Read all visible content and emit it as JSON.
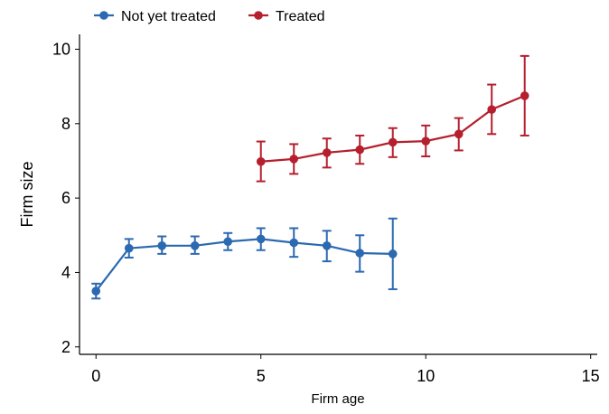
{
  "chart_data": {
    "type": "line",
    "title": "",
    "xlabel": "Firm age",
    "ylabel": "Firm size",
    "xlim": [
      -0.5,
      15.2
    ],
    "ylim": [
      1.8,
      10.4
    ],
    "xticks": [
      0,
      5,
      10,
      15
    ],
    "yticks": [
      2,
      4,
      6,
      8,
      10
    ],
    "grid": false,
    "legend_position": "top-left",
    "error_bars": true,
    "series": [
      {
        "name": "Not yet treated",
        "color": "#2b69b0",
        "points": [
          {
            "x": 0,
            "y": 3.5,
            "lo": 3.3,
            "hi": 3.7
          },
          {
            "x": 1,
            "y": 4.65,
            "lo": 4.4,
            "hi": 4.9
          },
          {
            "x": 2,
            "y": 4.72,
            "lo": 4.5,
            "hi": 4.97
          },
          {
            "x": 3,
            "y": 4.72,
            "lo": 4.5,
            "hi": 4.97
          },
          {
            "x": 4,
            "y": 4.83,
            "lo": 4.6,
            "hi": 5.06
          },
          {
            "x": 5,
            "y": 4.9,
            "lo": 4.6,
            "hi": 5.19
          },
          {
            "x": 6,
            "y": 4.8,
            "lo": 4.42,
            "hi": 5.19
          },
          {
            "x": 7,
            "y": 4.72,
            "lo": 4.3,
            "hi": 5.12
          },
          {
            "x": 8,
            "y": 4.52,
            "lo": 4.02,
            "hi": 5.0
          },
          {
            "x": 9,
            "y": 4.5,
            "lo": 3.55,
            "hi": 5.45
          }
        ]
      },
      {
        "name": "Treated",
        "color": "#b51f2e",
        "points": [
          {
            "x": 5,
            "y": 6.98,
            "lo": 6.45,
            "hi": 7.52
          },
          {
            "x": 6,
            "y": 7.05,
            "lo": 6.65,
            "hi": 7.45
          },
          {
            "x": 7,
            "y": 7.22,
            "lo": 6.82,
            "hi": 7.6
          },
          {
            "x": 8,
            "y": 7.3,
            "lo": 6.92,
            "hi": 7.68
          },
          {
            "x": 9,
            "y": 7.5,
            "lo": 7.1,
            "hi": 7.88
          },
          {
            "x": 10,
            "y": 7.53,
            "lo": 7.12,
            "hi": 7.95
          },
          {
            "x": 11,
            "y": 7.72,
            "lo": 7.28,
            "hi": 8.15
          },
          {
            "x": 12,
            "y": 8.38,
            "lo": 7.72,
            "hi": 9.05
          },
          {
            "x": 13,
            "y": 8.75,
            "lo": 7.68,
            "hi": 9.82
          }
        ]
      }
    ]
  }
}
